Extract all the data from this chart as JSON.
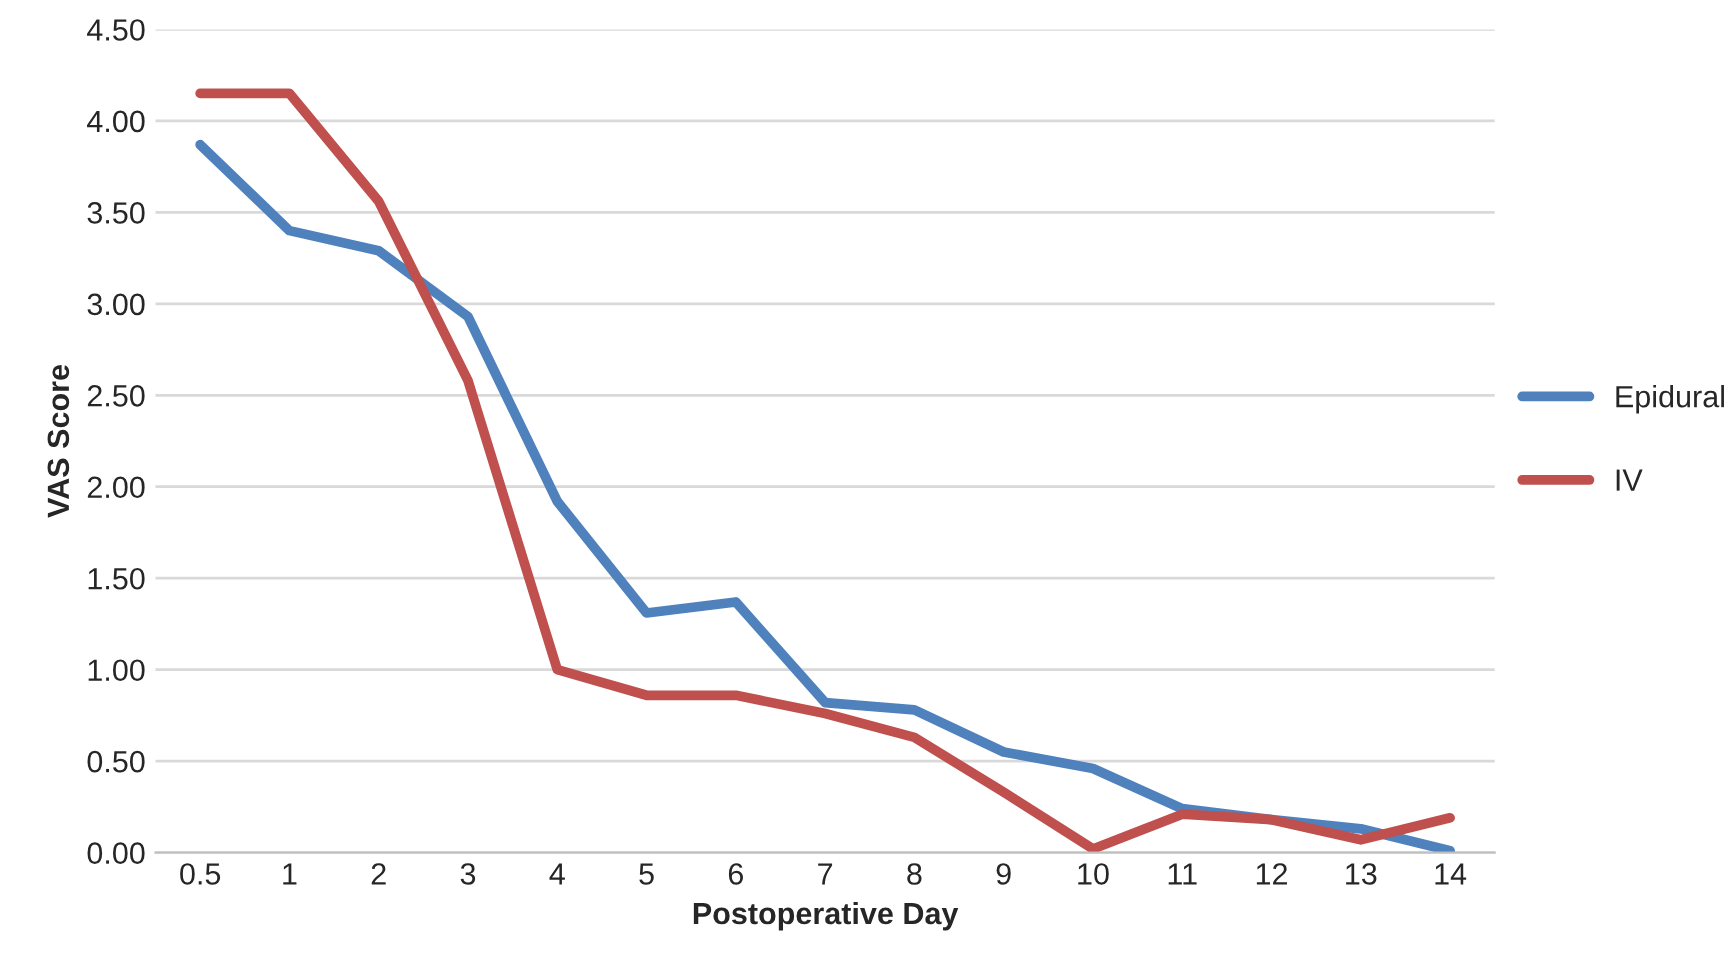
{
  "chart_data": {
    "type": "line",
    "xlabel": "Postoperative Day",
    "ylabel": "VAS Score",
    "categories": [
      "0.5",
      "1",
      "2",
      "3",
      "4",
      "5",
      "6",
      "7",
      "8",
      "9",
      "10",
      "11",
      "12",
      "13",
      "14"
    ],
    "series": [
      {
        "name": "Epidural",
        "color": "#4f81bd",
        "values": [
          3.87,
          3.4,
          3.29,
          2.93,
          1.92,
          1.31,
          1.37,
          0.82,
          0.78,
          0.55,
          0.46,
          0.24,
          0.18,
          0.13,
          0.01
        ]
      },
      {
        "name": "IV",
        "color": "#c0504d",
        "values": [
          4.15,
          4.15,
          3.56,
          2.58,
          1.0,
          0.86,
          0.86,
          0.76,
          0.63,
          0.33,
          0.02,
          0.21,
          0.18,
          0.07,
          0.19
        ]
      }
    ],
    "ylim": [
      0,
      4.5
    ],
    "yticks": [
      {
        "value": 0,
        "label": "0.00"
      },
      {
        "value": 0.5,
        "label": "0.50"
      },
      {
        "value": 1,
        "label": "1.00"
      },
      {
        "value": 1.5,
        "label": "1.50"
      },
      {
        "value": 2,
        "label": "2.00"
      },
      {
        "value": 2.5,
        "label": "2.50"
      },
      {
        "value": 3,
        "label": "3.00"
      },
      {
        "value": 3.5,
        "label": "3.50"
      },
      {
        "value": 4,
        "label": "4.00"
      },
      {
        "value": 4.5,
        "label": "4.50"
      }
    ],
    "grid": "y",
    "legend": "right",
    "line_style": "solid",
    "marker": "none"
  }
}
